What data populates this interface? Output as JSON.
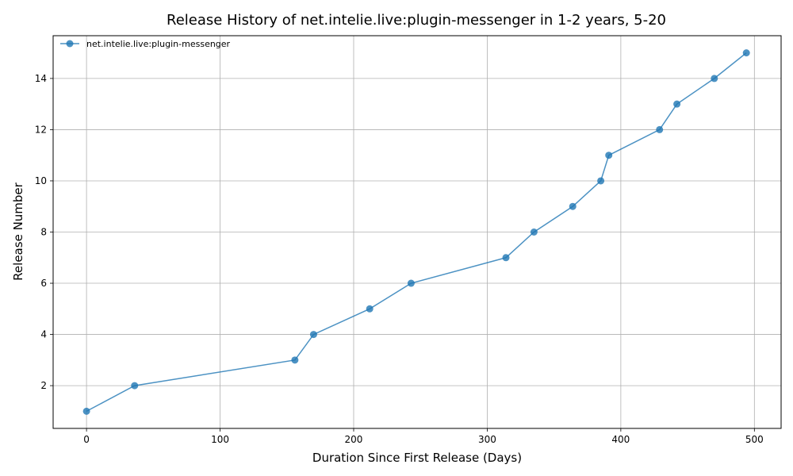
{
  "chart_data": {
    "type": "line",
    "title": "Release History of net.intelie.live:plugin-messenger in 1-2 years, 5-20",
    "xlabel": "Duration Since First Release (Days)",
    "ylabel": "Release Number",
    "xlim": [
      -25,
      520
    ],
    "ylim": [
      0.33,
      15.67
    ],
    "xticks": [
      0,
      100,
      200,
      300,
      400,
      500
    ],
    "yticks": [
      2,
      4,
      6,
      8,
      10,
      12,
      14
    ],
    "grid": true,
    "legend_position": "upper-left",
    "series": [
      {
        "name": "net.intelie.live:plugin-messenger",
        "color": "#1f77b4",
        "marker": "circle",
        "x": [
          0,
          36,
          156,
          170,
          212,
          243,
          314,
          335,
          364,
          385,
          391,
          429,
          442,
          470,
          494
        ],
        "y": [
          1,
          2,
          3,
          4,
          5,
          6,
          7,
          8,
          9,
          10,
          11,
          12,
          13,
          14,
          15
        ]
      }
    ]
  }
}
